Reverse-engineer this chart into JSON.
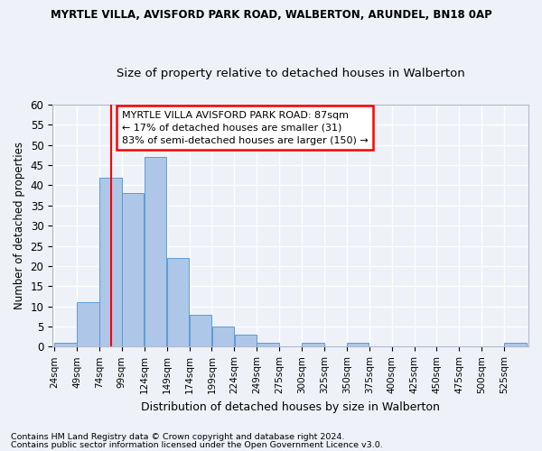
{
  "title1": "MYRTLE VILLA, AVISFORD PARK ROAD, WALBERTON, ARUNDEL, BN18 0AP",
  "title2": "Size of property relative to detached houses in Walberton",
  "xlabel": "Distribution of detached houses by size in Walberton",
  "ylabel": "Number of detached properties",
  "bin_labels": [
    "24sqm",
    "49sqm",
    "74sqm",
    "99sqm",
    "124sqm",
    "149sqm",
    "174sqm",
    "199sqm",
    "224sqm",
    "249sqm",
    "275sqm",
    "300sqm",
    "325sqm",
    "350sqm",
    "375sqm",
    "400sqm",
    "425sqm",
    "450sqm",
    "475sqm",
    "500sqm",
    "525sqm"
  ],
  "bar_values": [
    1,
    11,
    42,
    38,
    47,
    22,
    8,
    5,
    3,
    1,
    0,
    1,
    0,
    1,
    0,
    0,
    0,
    0,
    0,
    0,
    1
  ],
  "bar_color": "#aec6e8",
  "bar_edge_color": "#5b9bd5",
  "red_line_x": 87,
  "ylim": [
    0,
    60
  ],
  "yticks": [
    0,
    5,
    10,
    15,
    20,
    25,
    30,
    35,
    40,
    45,
    50,
    55,
    60
  ],
  "annotation_text": "MYRTLE VILLA AVISFORD PARK ROAD: 87sqm\n← 17% of detached houses are smaller (31)\n83% of semi-detached houses are larger (150) →",
  "annotation_box_color": "white",
  "annotation_box_edge_color": "red",
  "footer1": "Contains HM Land Registry data © Crown copyright and database right 2024.",
  "footer2": "Contains public sector information licensed under the Open Government Licence v3.0.",
  "background_color": "#eef2f8",
  "grid_color": "white"
}
